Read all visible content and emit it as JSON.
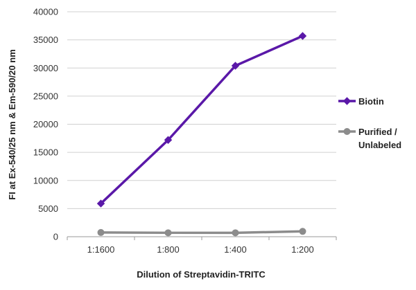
{
  "chart_data": {
    "type": "line",
    "title": "",
    "xlabel": "Dilution of Streptavidin-TRITC",
    "ylabel": "FI at Ex-540/25 nm & Em-590/20 nm",
    "categories": [
      "1:1600",
      "1:800",
      "1:400",
      "1:200"
    ],
    "ylim": [
      0,
      40000
    ],
    "yticks": [
      0,
      5000,
      10000,
      15000,
      20000,
      25000,
      30000,
      35000,
      40000
    ],
    "grid": true,
    "legend_position": "right",
    "series": [
      {
        "name": "Biotin",
        "values": [
          5900,
          17200,
          30400,
          35700
        ],
        "color": "#5a18a8",
        "marker": "diamond"
      },
      {
        "name": "Purified / Unlabeled",
        "values": [
          750,
          700,
          700,
          950
        ],
        "color": "#8c8c8c",
        "marker": "circle"
      }
    ]
  }
}
